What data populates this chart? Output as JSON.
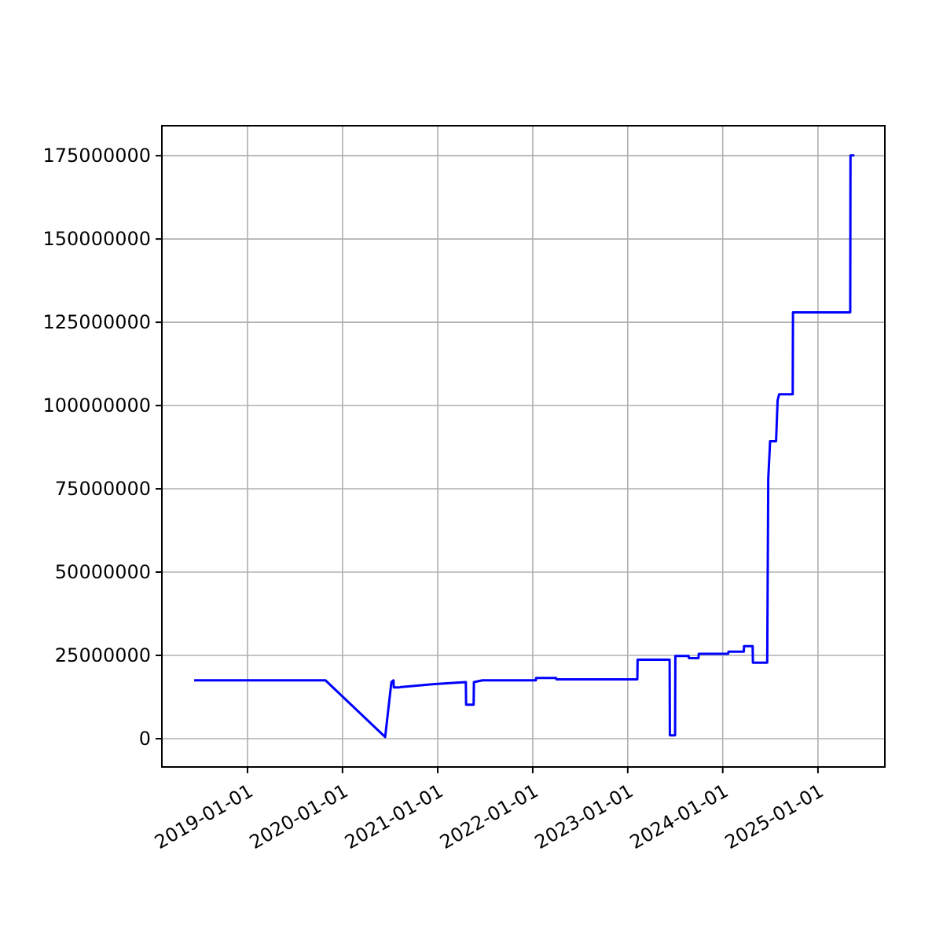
{
  "chart_data": {
    "type": "line",
    "x": [
      "2018-06-10",
      "2019-10-28",
      "2020-06-13",
      "2020-07-07",
      "2020-07-15",
      "2020-07-16",
      "2020-08-02",
      "2020-12-20",
      "2021-04-19",
      "2021-04-20",
      "2021-05-19",
      "2021-05-20",
      "2021-06-22",
      "2022-01-13",
      "2022-01-14",
      "2022-04-01",
      "2022-04-02",
      "2023-02-07",
      "2023-02-08",
      "2023-06-11",
      "2023-06-12",
      "2023-07-02",
      "2023-07-03",
      "2023-08-23",
      "2023-08-24",
      "2023-09-30",
      "2023-10-01",
      "2024-01-22",
      "2024-01-23",
      "2024-03-22",
      "2024-03-23",
      "2024-04-25",
      "2024-04-26",
      "2024-06-20",
      "2024-06-24",
      "2024-06-30",
      "2024-07-01",
      "2024-07-24",
      "2024-07-30",
      "2024-08-05",
      "2024-09-26",
      "2024-09-27",
      "2025-05-05",
      "2025-05-06",
      "2025-05-21"
    ],
    "series": [
      {
        "color": "#0000ff",
        "values": [
          17500000,
          17500000,
          500000,
          17000000,
          17500000,
          15400000,
          15400000,
          16400000,
          17000000,
          10200000,
          10200000,
          17000000,
          17500000,
          17500000,
          18200000,
          18200000,
          17800000,
          17800000,
          23700000,
          23700000,
          1000000,
          1000000,
          24800000,
          24800000,
          24200000,
          24200000,
          25500000,
          25500000,
          26100000,
          26100000,
          27800000,
          27800000,
          22800000,
          22800000,
          78000000,
          87400000,
          89300000,
          89300000,
          101600000,
          103400000,
          103400000,
          128000000,
          128000000,
          175100000,
          175100000
        ]
      }
    ],
    "xlim": [
      "2018-02-06",
      "2025-09-15"
    ],
    "xticks": [
      {
        "value": "2019-01-01",
        "label": "2019-01-01"
      },
      {
        "value": "2020-01-01",
        "label": "2020-01-01"
      },
      {
        "value": "2021-01-01",
        "label": "2021-01-01"
      },
      {
        "value": "2022-01-01",
        "label": "2022-01-01"
      },
      {
        "value": "2023-01-01",
        "label": "2023-01-01"
      },
      {
        "value": "2024-01-01",
        "label": "2024-01-01"
      },
      {
        "value": "2025-01-01",
        "label": "2025-01-01"
      }
    ],
    "ylim": [
      -8500000,
      184000000
    ],
    "yticks": [
      0,
      25000000,
      50000000,
      75000000,
      100000000,
      125000000,
      150000000,
      175000000
    ],
    "grid": true,
    "line_style": "solid",
    "marker": "none"
  }
}
